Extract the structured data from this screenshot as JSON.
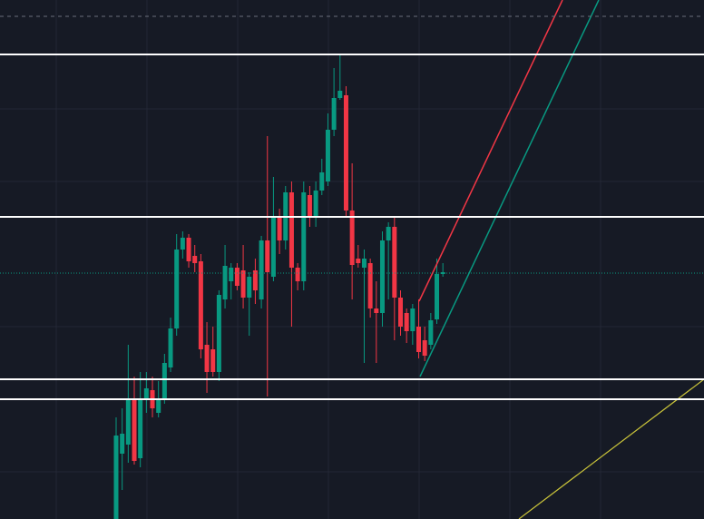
{
  "chart_data": {
    "type": "candlestick",
    "up_color": "#089981",
    "down_color": "#f23645",
    "ylim": [
      0,
      572
    ],
    "open": [
      0,
      72,
      82,
      132,
      67,
      132,
      142,
      117,
      132,
      167,
      210,
      297,
      310,
      290,
      284,
      192,
      187,
      162,
      242,
      262,
      277,
      274,
      244,
      274,
      242,
      307,
      267,
      332,
      307,
      360,
      277,
      262,
      357,
      332,
      362,
      372,
      429,
      464,
      467,
      340,
      287,
      277,
      282,
      232,
      227,
      307,
      322,
      244,
      227,
      207,
      212,
      197,
      192,
      220,
      270
    ],
    "high": [
      112,
      122,
      192,
      157,
      162,
      162,
      157,
      152,
      182,
      222,
      314,
      317,
      314,
      302,
      292,
      217,
      212,
      252,
      302,
      282,
      282,
      302,
      272,
      287,
      312,
      422,
      377,
      342,
      367,
      372,
      282,
      372,
      367,
      372,
      397,
      447,
      497,
      512,
      477,
      392,
      302,
      297,
      287,
      262,
      317,
      327,
      332,
      252,
      232,
      237,
      242,
      212,
      227,
      287,
      282
    ],
    "low": [
      0,
      32,
      62,
      60,
      57,
      117,
      112,
      112,
      127,
      162,
      202,
      287,
      277,
      272,
      177,
      139,
      157,
      152,
      232,
      242,
      252,
      232,
      202,
      237,
      232,
      135,
      262,
      292,
      297,
      212,
      252,
      252,
      322,
      322,
      357,
      367,
      422,
      462,
      332,
      242,
      277,
      172,
      222,
      172,
      212,
      242,
      197,
      202,
      194,
      192,
      177,
      174,
      187,
      215,
      267
    ],
    "close": [
      92,
      94,
      132,
      64,
      132,
      144,
      122,
      132,
      172,
      210,
      297,
      310,
      284,
      282,
      187,
      162,
      162,
      247,
      279,
      277,
      257,
      244,
      267,
      252,
      307,
      272,
      332,
      307,
      360,
      277,
      262,
      360,
      332,
      362,
      382,
      429,
      464,
      472,
      340,
      280,
      282,
      287,
      232,
      227,
      307,
      322,
      244,
      212,
      207,
      232,
      184,
      180,
      219,
      270,
      272
    ],
    "levels": [
      512,
      333,
      154,
      132
    ],
    "level_color": "#ffffff",
    "price_line": 271,
    "price_line_color": "#089981",
    "dashed_line": 554,
    "dashed_line_color": "#6b6f7a"
  }
}
